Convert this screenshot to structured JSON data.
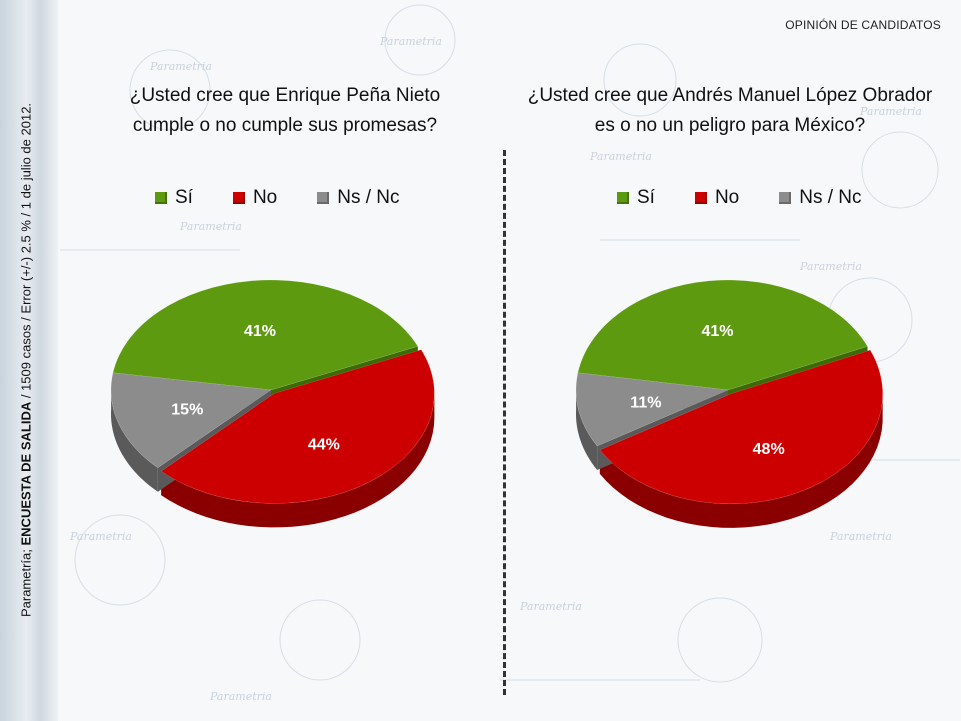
{
  "header": {
    "tag": "OPINIÓN DE CANDIDATOS"
  },
  "sidebar": {
    "source_prefix": "Parametría; ",
    "source_bold": "ENCUESTA DE SALIDA",
    "source_rest": " / 1509 casos / Error (+/-) 2.5  % / 1 de julio de 2012."
  },
  "colors": {
    "si": "#5e9a10",
    "no": "#cc0000",
    "nsnc": "#8c8c8c"
  },
  "chart_data": [
    {
      "type": "pie",
      "title_line1": "¿Usted cree que Enrique Peña Nieto",
      "title_line2": "cumple o no cumple sus promesas?",
      "categories": [
        "Sí",
        "No",
        "Ns / Nc"
      ],
      "values": [
        41,
        44,
        15
      ],
      "labels": [
        "41%",
        "44%",
        "15%"
      ],
      "legend_position": "top"
    },
    {
      "type": "pie",
      "title_line1": "¿Usted cree que Andrés Manuel López Obrador",
      "title_line2": "es o no un peligro para México?",
      "categories": [
        "Sí",
        "No",
        "Ns / Nc"
      ],
      "values": [
        41,
        48,
        11
      ],
      "labels": [
        "41%",
        "48%",
        "11%"
      ],
      "legend_position": "top"
    }
  ]
}
